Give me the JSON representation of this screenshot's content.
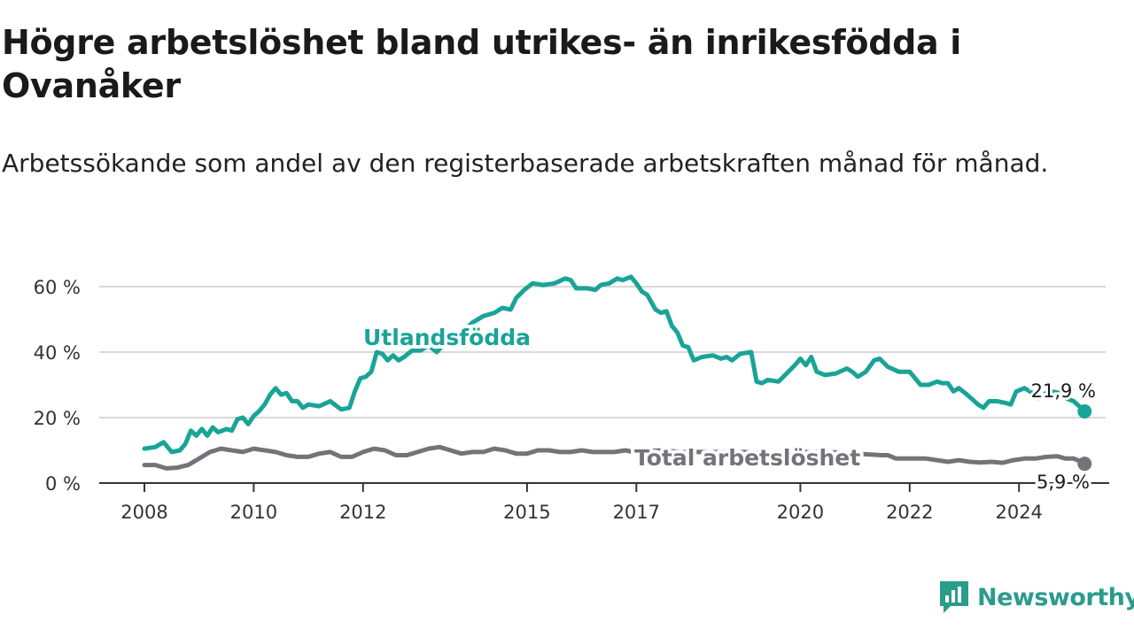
{
  "title": "Högre arbetslöshet bland utrikes- än inrikesfödda i Ovanåker",
  "subtitle": "Arbetssökande som andel av den registerbaserade arbetskraften månad för månad.",
  "brand": "Newsworthy",
  "colors": {
    "foreign": "#19a497",
    "total": "#767279",
    "grid": "#d9d9d9",
    "axis": "#333333"
  },
  "chart_data": {
    "type": "line",
    "title": "Högre arbetslöshet bland utrikes- än inrikesfödda i Ovanåker",
    "subtitle": "Arbetssökande som andel av den registerbaserade arbetskraften månad för månad.",
    "xlabel": "",
    "ylabel": "",
    "ylim": [
      0,
      65
    ],
    "yticks": [
      0,
      20,
      40,
      60
    ],
    "ytick_labels": [
      "0 %",
      "20 %",
      "40 %",
      "60 %"
    ],
    "xticks": [
      2008,
      2010,
      2012,
      2015,
      2017,
      2020,
      2022,
      2024
    ],
    "xlim": [
      2007.9,
      2025.3
    ],
    "grid": true,
    "series": [
      {
        "name": "Utlandsfödda",
        "end_label": "21,9 %",
        "points": [
          [
            2008.0,
            10.5
          ],
          [
            2008.2,
            11
          ],
          [
            2008.35,
            12.5
          ],
          [
            2008.5,
            9.5
          ],
          [
            2008.65,
            10
          ],
          [
            2008.75,
            12
          ],
          [
            2008.85,
            16
          ],
          [
            2008.95,
            14.5
          ],
          [
            2009.05,
            16.5
          ],
          [
            2009.15,
            14.5
          ],
          [
            2009.25,
            17
          ],
          [
            2009.35,
            15.5
          ],
          [
            2009.5,
            16.5
          ],
          [
            2009.6,
            16
          ],
          [
            2009.7,
            19.5
          ],
          [
            2009.8,
            20
          ],
          [
            2009.9,
            18
          ],
          [
            2010.0,
            20.5
          ],
          [
            2010.1,
            22
          ],
          [
            2010.2,
            24
          ],
          [
            2010.3,
            27
          ],
          [
            2010.4,
            29
          ],
          [
            2010.5,
            27
          ],
          [
            2010.6,
            27.5
          ],
          [
            2010.7,
            25
          ],
          [
            2010.8,
            25
          ],
          [
            2010.9,
            23
          ],
          [
            2011.0,
            24
          ],
          [
            2011.2,
            23.5
          ],
          [
            2011.4,
            25
          ],
          [
            2011.6,
            22.5
          ],
          [
            2011.75,
            23
          ],
          [
            2011.85,
            28
          ],
          [
            2011.95,
            32
          ],
          [
            2012.05,
            32.5
          ],
          [
            2012.15,
            34
          ],
          [
            2012.25,
            40
          ],
          [
            2012.35,
            39.5
          ],
          [
            2012.45,
            37.5
          ],
          [
            2012.55,
            39
          ],
          [
            2012.65,
            37.5
          ],
          [
            2012.75,
            38.5
          ],
          [
            2012.9,
            40.5
          ],
          [
            2013.05,
            40.5
          ],
          [
            2013.2,
            42
          ],
          [
            2013.35,
            40
          ],
          [
            2013.5,
            43
          ],
          [
            2013.65,
            44
          ],
          [
            2013.8,
            46
          ],
          [
            2014.0,
            49
          ],
          [
            2014.2,
            51
          ],
          [
            2014.4,
            52
          ],
          [
            2014.55,
            53.5
          ],
          [
            2014.7,
            53
          ],
          [
            2014.8,
            56.5
          ],
          [
            2014.95,
            59
          ],
          [
            2015.1,
            61
          ],
          [
            2015.3,
            60.5
          ],
          [
            2015.5,
            61
          ],
          [
            2015.7,
            62.5
          ],
          [
            2015.8,
            62
          ],
          [
            2015.9,
            59.5
          ],
          [
            2016.1,
            59.5
          ],
          [
            2016.25,
            59
          ],
          [
            2016.35,
            60.5
          ],
          [
            2016.5,
            61
          ],
          [
            2016.65,
            62.5
          ],
          [
            2016.75,
            62
          ],
          [
            2016.9,
            63
          ],
          [
            2017.0,
            61
          ],
          [
            2017.1,
            58.5
          ],
          [
            2017.2,
            57.5
          ],
          [
            2017.35,
            53
          ],
          [
            2017.45,
            52
          ],
          [
            2017.55,
            52.5
          ],
          [
            2017.65,
            48
          ],
          [
            2017.75,
            46
          ],
          [
            2017.85,
            42
          ],
          [
            2017.95,
            41.5
          ],
          [
            2018.05,
            37.5
          ],
          [
            2018.2,
            38.5
          ],
          [
            2018.4,
            39
          ],
          [
            2018.55,
            38
          ],
          [
            2018.65,
            38.5
          ],
          [
            2018.75,
            37.5
          ],
          [
            2018.9,
            39.5
          ],
          [
            2019.1,
            40
          ],
          [
            2019.2,
            31
          ],
          [
            2019.3,
            30.5
          ],
          [
            2019.4,
            31.5
          ],
          [
            2019.6,
            31
          ],
          [
            2019.75,
            33.5
          ],
          [
            2019.9,
            36
          ],
          [
            2020.0,
            38
          ],
          [
            2020.1,
            36
          ],
          [
            2020.2,
            38.5
          ],
          [
            2020.3,
            34
          ],
          [
            2020.45,
            33
          ],
          [
            2020.65,
            33.5
          ],
          [
            2020.85,
            35
          ],
          [
            2020.95,
            34
          ],
          [
            2021.05,
            32.5
          ],
          [
            2021.2,
            34
          ],
          [
            2021.35,
            37.5
          ],
          [
            2021.45,
            38
          ],
          [
            2021.6,
            35.5
          ],
          [
            2021.8,
            34
          ],
          [
            2022.0,
            34
          ],
          [
            2022.1,
            32
          ],
          [
            2022.2,
            30
          ],
          [
            2022.35,
            30
          ],
          [
            2022.5,
            31
          ],
          [
            2022.6,
            30.5
          ],
          [
            2022.7,
            30.5
          ],
          [
            2022.8,
            28
          ],
          [
            2022.9,
            29
          ],
          [
            2023.05,
            27
          ],
          [
            2023.15,
            25.5
          ],
          [
            2023.25,
            24
          ],
          [
            2023.35,
            23
          ],
          [
            2023.45,
            25
          ],
          [
            2023.6,
            25
          ],
          [
            2023.75,
            24.5
          ],
          [
            2023.85,
            24
          ],
          [
            2023.95,
            28
          ],
          [
            2024.1,
            29
          ],
          [
            2024.25,
            27.5
          ],
          [
            2024.35,
            26
          ],
          [
            2024.5,
            27.5
          ],
          [
            2024.6,
            28
          ],
          [
            2024.75,
            27.5
          ],
          [
            2024.85,
            26
          ],
          [
            2025.0,
            25
          ],
          [
            2025.1,
            23.5
          ],
          [
            2025.2,
            21.9
          ]
        ]
      },
      {
        "name": "Total arbetslöshet",
        "end_label": "5,9 %",
        "points": [
          [
            2008.0,
            5.5
          ],
          [
            2008.2,
            5.5
          ],
          [
            2008.4,
            4.5
          ],
          [
            2008.6,
            4.7
          ],
          [
            2008.8,
            5.5
          ],
          [
            2009.0,
            7.5
          ],
          [
            2009.2,
            9.5
          ],
          [
            2009.4,
            10.5
          ],
          [
            2009.6,
            10
          ],
          [
            2009.8,
            9.5
          ],
          [
            2010.0,
            10.5
          ],
          [
            2010.2,
            10
          ],
          [
            2010.4,
            9.5
          ],
          [
            2010.6,
            8.5
          ],
          [
            2010.8,
            8
          ],
          [
            2011.0,
            8
          ],
          [
            2011.2,
            9
          ],
          [
            2011.4,
            9.5
          ],
          [
            2011.6,
            8
          ],
          [
            2011.8,
            8
          ],
          [
            2012.0,
            9.5
          ],
          [
            2012.2,
            10.5
          ],
          [
            2012.4,
            10
          ],
          [
            2012.6,
            8.5
          ],
          [
            2012.8,
            8.5
          ],
          [
            2013.0,
            9.5
          ],
          [
            2013.2,
            10.5
          ],
          [
            2013.4,
            11
          ],
          [
            2013.6,
            10
          ],
          [
            2013.8,
            9
          ],
          [
            2014.0,
            9.5
          ],
          [
            2014.2,
            9.5
          ],
          [
            2014.4,
            10.5
          ],
          [
            2014.6,
            10
          ],
          [
            2014.8,
            9
          ],
          [
            2015.0,
            9
          ],
          [
            2015.2,
            10
          ],
          [
            2015.4,
            10
          ],
          [
            2015.6,
            9.5
          ],
          [
            2015.8,
            9.5
          ],
          [
            2016.0,
            10
          ],
          [
            2016.2,
            9.5
          ],
          [
            2016.4,
            9.5
          ],
          [
            2016.6,
            9.5
          ],
          [
            2016.8,
            10
          ],
          [
            2016.95,
            9.5
          ],
          [
            2017.2,
            9.8
          ],
          [
            2017.5,
            10
          ],
          [
            2017.8,
            9.5
          ],
          [
            2018.0,
            9.5
          ],
          [
            2018.5,
            9.5
          ],
          [
            2019.0,
            9.5
          ],
          [
            2019.5,
            9
          ],
          [
            2020.0,
            9.5
          ],
          [
            2020.5,
            9.5
          ],
          [
            2021.0,
            9
          ],
          [
            2021.5,
            8.5
          ],
          [
            2021.6,
            8.5
          ],
          [
            2021.75,
            7.5
          ],
          [
            2021.9,
            7.5
          ],
          [
            2022.1,
            7.5
          ],
          [
            2022.3,
            7.5
          ],
          [
            2022.5,
            7
          ],
          [
            2022.7,
            6.5
          ],
          [
            2022.9,
            7
          ],
          [
            2023.1,
            6.5
          ],
          [
            2023.3,
            6.3
          ],
          [
            2023.5,
            6.5
          ],
          [
            2023.7,
            6.2
          ],
          [
            2023.9,
            7
          ],
          [
            2024.1,
            7.5
          ],
          [
            2024.3,
            7.5
          ],
          [
            2024.5,
            8
          ],
          [
            2024.7,
            8.2
          ],
          [
            2024.85,
            7.5
          ],
          [
            2025.0,
            7.5
          ],
          [
            2025.1,
            6.8
          ],
          [
            2025.2,
            5.9
          ]
        ]
      }
    ]
  }
}
